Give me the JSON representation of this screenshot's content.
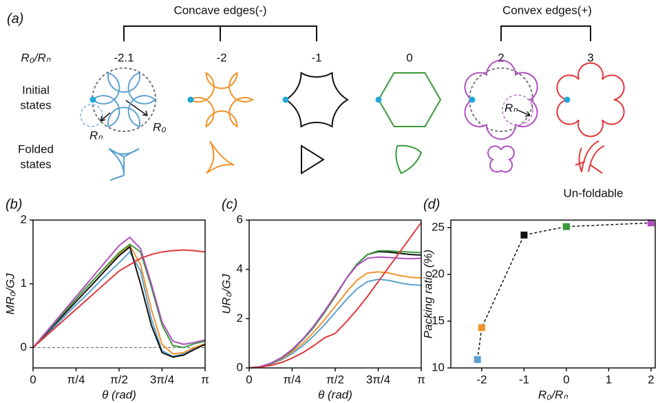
{
  "panel_a": {
    "label": "(a)",
    "concave_label": "Concave edges(-)",
    "convex_label": "Convex edges(+)",
    "ratio_label": "R₀/Rₙ",
    "ratios": [
      "-2.1",
      "-2",
      "-1",
      "0",
      "2",
      "3"
    ],
    "initial_label": [
      "Initial",
      "states"
    ],
    "folded_label": [
      "Folded",
      "states"
    ],
    "radius_labels": [
      "Rₙ",
      "R₀",
      "Rₙ"
    ],
    "unfoldable": "Un-foldable"
  },
  "chart_data": [
    {
      "type": "line",
      "panel_label": "(b)",
      "x_label": "θ (rad)",
      "y_label": "MR₀/GJ",
      "x": [
        0,
        0.196,
        0.393,
        0.589,
        0.785,
        0.982,
        1.178,
        1.374,
        1.571,
        1.767,
        1.963,
        2.16,
        2.356,
        2.553,
        2.749,
        2.945,
        3.142
      ],
      "xlim": [
        0,
        3.1416
      ],
      "xticks": [
        0,
        {
          "value": 0.7854,
          "label": "π/4"
        },
        {
          "value": 1.5708,
          "label": "π/2"
        },
        {
          "value": 2.3562,
          "label": "3π/4"
        },
        {
          "value": 3.1416,
          "label": "π"
        }
      ],
      "ylim": [
        -0.32,
        2
      ],
      "yticks": [
        0,
        1,
        2
      ],
      "zero_line": true,
      "series": [
        {
          "color": "#5aa0d0",
          "values": [
            0,
            0.17,
            0.33,
            0.5,
            0.67,
            0.83,
            1.0,
            1.17,
            1.33,
            1.5,
            1.2,
            0.45,
            -0.05,
            -0.14,
            -0.1,
            -0.02,
            0.05
          ]
        },
        {
          "color": "#f0932b",
          "values": [
            0,
            0.19,
            0.38,
            0.57,
            0.76,
            0.95,
            1.13,
            1.3,
            1.47,
            1.6,
            1.3,
            0.6,
            0.05,
            -0.1,
            -0.08,
            0.0,
            0.06
          ]
        },
        {
          "color": "#111111",
          "values": [
            0,
            0.18,
            0.36,
            0.54,
            0.72,
            0.9,
            1.08,
            1.26,
            1.44,
            1.58,
            1.0,
            0.35,
            -0.08,
            -0.15,
            -0.12,
            -0.03,
            0.05
          ]
        },
        {
          "color": "#3a9a3a",
          "values": [
            0,
            0.19,
            0.38,
            0.57,
            0.76,
            0.95,
            1.13,
            1.31,
            1.49,
            1.62,
            1.5,
            0.95,
            0.35,
            0.03,
            0.0,
            0.06,
            0.1
          ]
        },
        {
          "color": "#b04fc0",
          "values": [
            0,
            0.2,
            0.4,
            0.6,
            0.8,
            1.0,
            1.2,
            1.4,
            1.6,
            1.73,
            1.55,
            1.0,
            0.4,
            0.1,
            0.05,
            0.08,
            0.12
          ]
        },
        {
          "color": "#e0373a",
          "values": [
            0,
            0.15,
            0.3,
            0.45,
            0.6,
            0.75,
            0.9,
            1.05,
            1.2,
            1.3,
            1.4,
            1.46,
            1.5,
            1.52,
            1.53,
            1.52,
            1.5
          ]
        }
      ]
    },
    {
      "type": "line",
      "panel_label": "(c)",
      "x_label": "θ (rad)",
      "y_label": "UR₀/GJ",
      "x": [
        0,
        0.196,
        0.393,
        0.589,
        0.785,
        0.982,
        1.178,
        1.374,
        1.571,
        1.767,
        1.963,
        2.16,
        2.356,
        2.553,
        2.749,
        2.945,
        3.142
      ],
      "xlim": [
        0,
        3.1416
      ],
      "xticks": [
        0,
        {
          "value": 0.7854,
          "label": "π/4"
        },
        {
          "value": 1.5708,
          "label": "π/2"
        },
        {
          "value": 2.3562,
          "label": "3π/4"
        },
        {
          "value": 3.1416,
          "label": "π"
        }
      ],
      "ylim": [
        0,
        6
      ],
      "yticks": [
        0,
        2,
        4,
        6
      ],
      "series": [
        {
          "color": "#5aa0d0",
          "values": [
            0,
            0.04,
            0.15,
            0.33,
            0.58,
            0.9,
            1.3,
            1.75,
            2.25,
            2.75,
            3.2,
            3.5,
            3.6,
            3.55,
            3.45,
            3.38,
            3.35
          ]
        },
        {
          "color": "#f0932b",
          "values": [
            0,
            0.045,
            0.17,
            0.37,
            0.65,
            1.0,
            1.45,
            1.95,
            2.5,
            3.05,
            3.55,
            3.85,
            3.9,
            3.85,
            3.75,
            3.68,
            3.65
          ]
        },
        {
          "color": "#111111",
          "values": [
            0,
            0.05,
            0.18,
            0.4,
            0.72,
            1.15,
            1.65,
            2.25,
            2.9,
            3.6,
            4.2,
            4.6,
            4.72,
            4.7,
            4.65,
            4.6,
            4.58
          ]
        },
        {
          "color": "#3a9a3a",
          "values": [
            0,
            0.05,
            0.18,
            0.4,
            0.72,
            1.15,
            1.65,
            2.25,
            2.9,
            3.6,
            4.2,
            4.6,
            4.75,
            4.75,
            4.72,
            4.7,
            4.68
          ]
        },
        {
          "color": "#b04fc0",
          "values": [
            0,
            0.05,
            0.19,
            0.42,
            0.75,
            1.18,
            1.7,
            2.3,
            2.95,
            3.6,
            4.15,
            4.45,
            4.5,
            4.48,
            4.45,
            4.43,
            4.45
          ]
        },
        {
          "color": "#e0373a",
          "values": [
            0,
            0.03,
            0.1,
            0.22,
            0.4,
            0.62,
            0.9,
            1.22,
            1.4,
            1.85,
            2.35,
            2.9,
            3.5,
            4.1,
            4.7,
            5.3,
            5.9
          ]
        }
      ]
    },
    {
      "type": "scatter",
      "panel_label": "(d)",
      "x_label": "R₀/Rₙ",
      "y_label": "Packing ratio (%)",
      "x": [
        -2.1,
        -2,
        -1,
        0,
        2
      ],
      "values": [
        10.9,
        14.3,
        24.2,
        25.1,
        25.5
      ],
      "colors": [
        "#5aa0d0",
        "#f0932b",
        "#111111",
        "#3a9a3a",
        "#b04fc0"
      ],
      "xlim": [
        -2.73,
        2.1
      ],
      "xticks": [
        -2,
        -1,
        0,
        1,
        2
      ],
      "ylim": [
        10,
        25.8
      ],
      "yticks": [
        10,
        15,
        20,
        25
      ]
    }
  ]
}
